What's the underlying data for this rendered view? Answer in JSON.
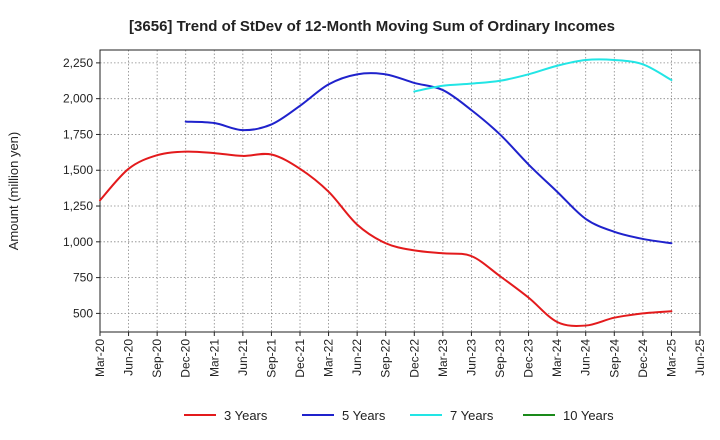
{
  "chart_data": {
    "type": "line",
    "title": "[3656]  Trend of StDev of 12-Month Moving Sum of Ordinary Incomes",
    "xlabel": "",
    "ylabel": "Amount (million yen)",
    "ylim": [
      370,
      2340
    ],
    "yticks": [
      500,
      750,
      1000,
      1250,
      1500,
      1750,
      2000,
      2250
    ],
    "ytick_labels": [
      "500",
      "750",
      "1,000",
      "1,250",
      "1,500",
      "1,750",
      "2,000",
      "2,250"
    ],
    "x_tick_labels": [
      "Mar-20",
      "Jun-20",
      "Sep-20",
      "Dec-20",
      "Mar-21",
      "Jun-21",
      "Sep-21",
      "Dec-21",
      "Mar-22",
      "Jun-22",
      "Sep-22",
      "Dec-22",
      "Mar-23",
      "Jun-23",
      "Sep-23",
      "Dec-23",
      "Mar-24",
      "Jun-24",
      "Sep-24",
      "Dec-24",
      "Mar-25",
      "Jun-25"
    ],
    "grid": true,
    "legend_position": "bottom",
    "series": [
      {
        "name": "3 Years",
        "color": "#e31a1c",
        "values": [
          1290,
          1510,
          1605,
          1630,
          1620,
          1600,
          1610,
          1510,
          1350,
          1120,
          990,
          940,
          920,
          900,
          760,
          610,
          440,
          415,
          470,
          500,
          515,
          null
        ]
      },
      {
        "name": "5 Years",
        "color": "#1f22cc",
        "values": [
          null,
          null,
          null,
          1840,
          1830,
          1780,
          1820,
          1950,
          2100,
          2170,
          2170,
          2110,
          2060,
          1920,
          1750,
          1540,
          1350,
          1160,
          1070,
          1020,
          990,
          null
        ]
      },
      {
        "name": "7 Years",
        "color": "#22e5e5",
        "values": [
          null,
          null,
          null,
          null,
          null,
          null,
          null,
          null,
          null,
          null,
          null,
          2050,
          2090,
          2105,
          2125,
          2170,
          2230,
          2270,
          2270,
          2240,
          2130,
          null
        ]
      },
      {
        "name": "10 Years",
        "color": "#1a8a1a",
        "values": [
          null,
          null,
          null,
          null,
          null,
          null,
          null,
          null,
          null,
          null,
          null,
          null,
          null,
          null,
          null,
          null,
          null,
          null,
          null,
          null,
          null,
          null
        ]
      }
    ]
  }
}
